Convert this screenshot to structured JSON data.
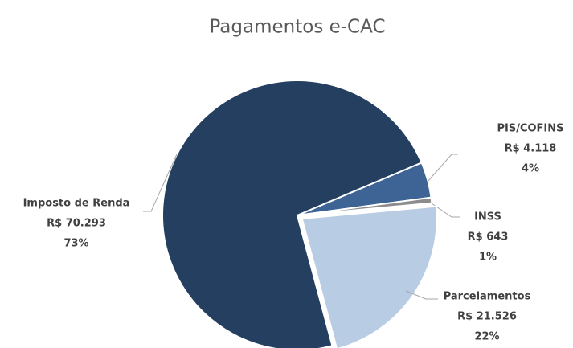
{
  "chart_data": {
    "type": "pie",
    "title": "Pagamentos e-CAC",
    "categories": [
      "Imposto de Renda",
      "PIS/COFINS",
      "INSS",
      "Parcelamentos"
    ],
    "values": [
      70293,
      4118,
      643,
      21526
    ],
    "value_labels": [
      "R$ 70.293",
      "R$ 4.118",
      "R$ 643",
      "R$ 21.526"
    ],
    "percent_labels": [
      "73%",
      "4%",
      "1%",
      "22%"
    ],
    "colors": [
      "#243f60",
      "#3d6495",
      "#8c8c8c",
      "#b8cce4"
    ]
  }
}
